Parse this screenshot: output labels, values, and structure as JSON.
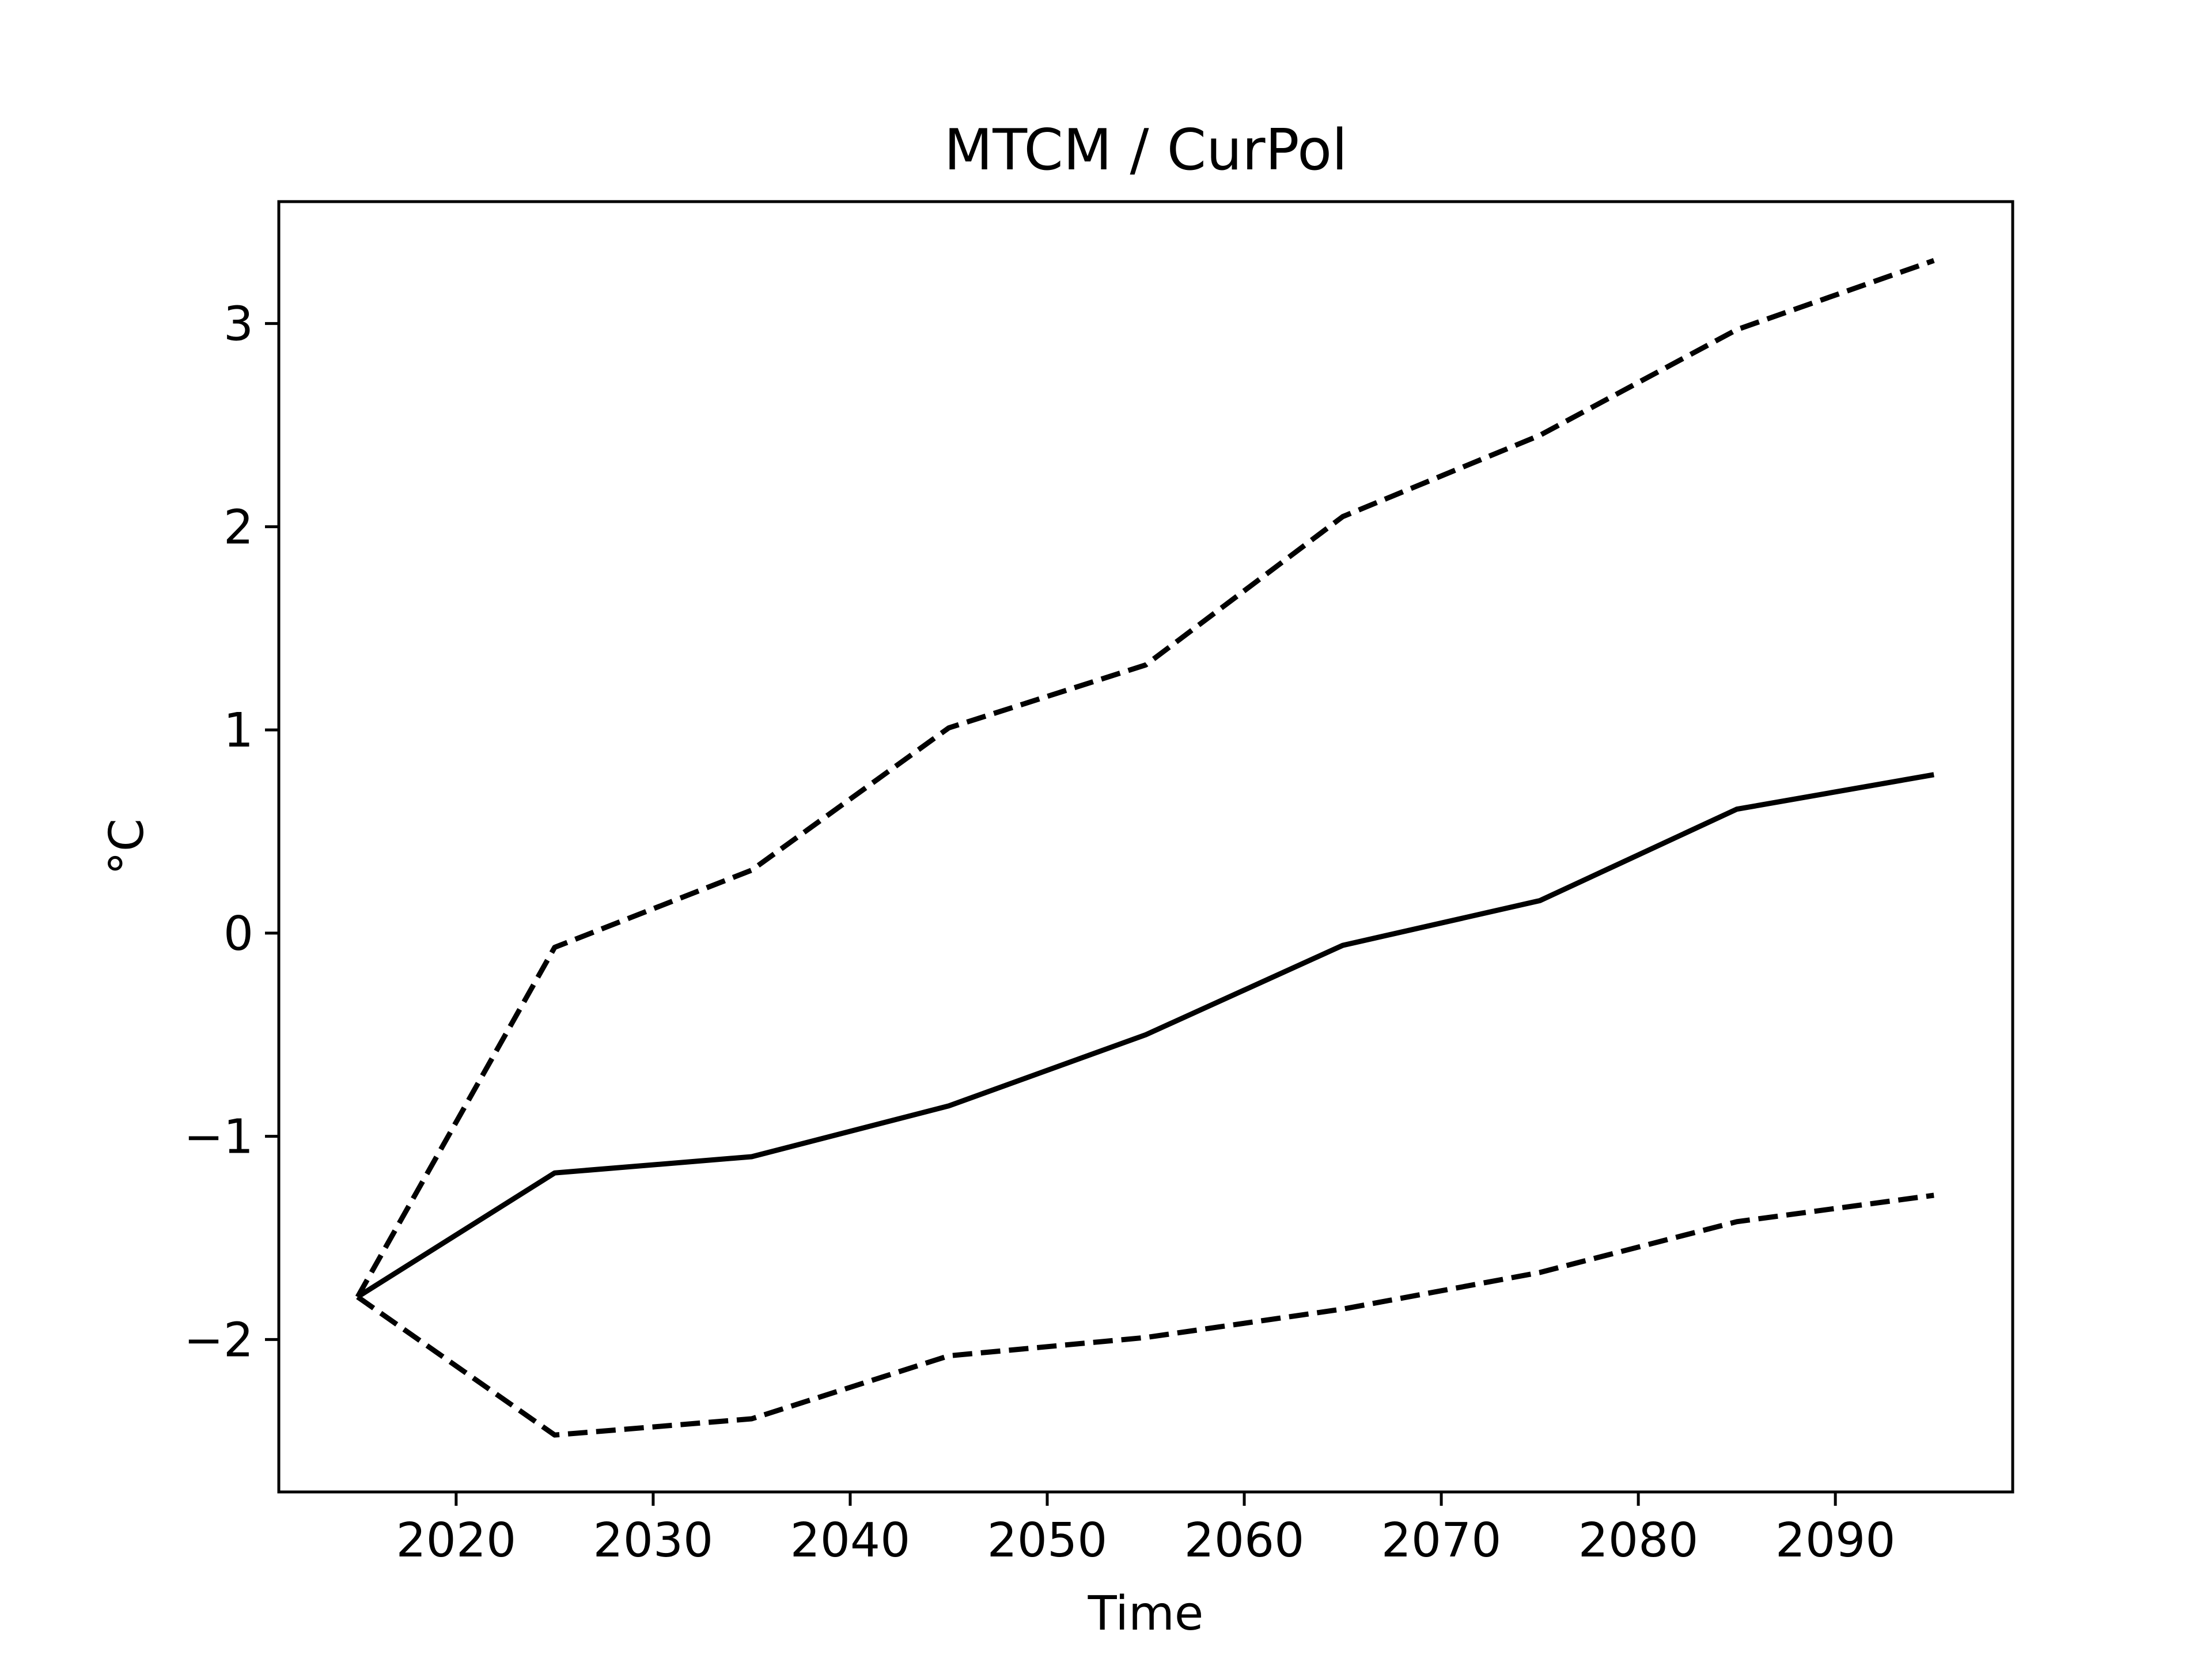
{
  "chart_data": {
    "type": "line",
    "title": "MTCM / CurPol",
    "xlabel": "Time",
    "ylabel": "°C",
    "xlim": [
      2011,
      2099
    ],
    "ylim": [
      -2.75,
      3.6
    ],
    "xticks": [
      2020,
      2030,
      2040,
      2050,
      2060,
      2070,
      2080,
      2090
    ],
    "xtick_labels": [
      "2020",
      "2030",
      "2040",
      "2050",
      "2060",
      "2070",
      "2080",
      "2090"
    ],
    "yticks": [
      -2,
      -1,
      0,
      1,
      2,
      3
    ],
    "ytick_labels": [
      "−2",
      "−1",
      "0",
      "1",
      "2",
      "3"
    ],
    "grid": false,
    "legend": false,
    "x": [
      2015,
      2025,
      2035,
      2045,
      2055,
      2065,
      2075,
      2085,
      2095
    ],
    "series": [
      {
        "style": "solid",
        "color": "#000000",
        "values": [
          -1.79,
          -1.18,
          -1.1,
          -0.85,
          -0.5,
          -0.06,
          0.16,
          0.61,
          0.78
        ]
      },
      {
        "style": "dashed",
        "color": "#000000",
        "values": [
          -1.79,
          -0.07,
          0.31,
          1.01,
          1.32,
          2.05,
          2.45,
          2.97,
          3.31
        ]
      },
      {
        "style": "dashed",
        "color": "#000000",
        "values": [
          -1.79,
          -2.47,
          -2.39,
          -2.08,
          -1.99,
          -1.85,
          -1.67,
          -1.42,
          -1.29
        ]
      }
    ]
  }
}
